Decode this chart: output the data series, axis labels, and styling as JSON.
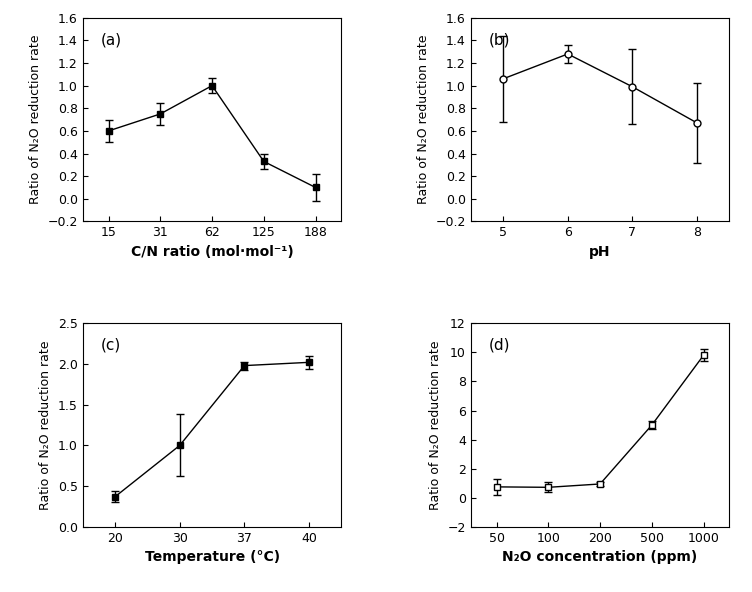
{
  "panel_a": {
    "x_positions": [
      0,
      1,
      2,
      3,
      4
    ],
    "x_labels": [
      "15",
      "31",
      "62",
      "125",
      "188"
    ],
    "y": [
      0.6,
      0.75,
      1.0,
      0.33,
      0.1
    ],
    "yerr": [
      0.1,
      0.1,
      0.065,
      0.07,
      0.12
    ],
    "xlabel": "C/N ratio (mol·mol⁻¹)",
    "ylabel": "Ratio of N₂O reduction rate",
    "label": "(a)",
    "ylim": [
      -0.2,
      1.6
    ],
    "yticks": [
      -0.2,
      0.0,
      0.2,
      0.4,
      0.6,
      0.8,
      1.0,
      1.2,
      1.4,
      1.6
    ],
    "marker": "s",
    "marker_fill": "black",
    "xlim": [
      -0.5,
      4.5
    ]
  },
  "panel_b": {
    "x_positions": [
      0,
      1,
      2,
      3
    ],
    "x_labels": [
      "5",
      "6",
      "7",
      "8"
    ],
    "y": [
      1.06,
      1.28,
      0.99,
      0.67
    ],
    "yerr": [
      0.38,
      0.08,
      0.33,
      0.35
    ],
    "xlabel": "pH",
    "ylabel": "Ratio of N₂O reduction rate",
    "label": "(b)",
    "ylim": [
      -0.2,
      1.6
    ],
    "yticks": [
      -0.2,
      0.0,
      0.2,
      0.4,
      0.6,
      0.8,
      1.0,
      1.2,
      1.4,
      1.6
    ],
    "marker": "o",
    "marker_fill": "white",
    "xlim": [
      -0.5,
      3.5
    ]
  },
  "panel_c": {
    "x_positions": [
      0,
      1,
      2,
      3
    ],
    "x_labels": [
      "20",
      "30",
      "37",
      "40"
    ],
    "y": [
      0.37,
      1.0,
      1.98,
      2.02
    ],
    "yerr": [
      0.07,
      0.38,
      0.05,
      0.08
    ],
    "xlabel": "Temperature (°C)",
    "ylabel": "Ratio of N₂O reduction rate",
    "label": "(c)",
    "ylim": [
      0.0,
      2.5
    ],
    "yticks": [
      0.0,
      0.5,
      1.0,
      1.5,
      2.0,
      2.5
    ],
    "marker": "s",
    "marker_fill": "black",
    "xlim": [
      -0.5,
      3.5
    ]
  },
  "panel_d": {
    "x_positions": [
      0,
      1,
      2,
      3,
      4
    ],
    "x_labels": [
      "50",
      "100",
      "200",
      "500",
      "1000"
    ],
    "y": [
      0.75,
      0.72,
      0.95,
      5.0,
      9.8
    ],
    "yerr": [
      0.55,
      0.35,
      0.15,
      0.3,
      0.4
    ],
    "xlabel": "N₂O concentration (ppm)",
    "ylabel": "Ratio of N₂O reduction rate",
    "label": "(d)",
    "ylim": [
      -2,
      12
    ],
    "yticks": [
      -2,
      0,
      2,
      4,
      6,
      8,
      10,
      12
    ],
    "marker": "s",
    "marker_fill": "white",
    "xlim": [
      -0.5,
      4.5
    ]
  },
  "line_color": "#000000",
  "line_style": "-",
  "line_width": 1.0,
  "capsize": 3,
  "elinewidth": 1.0,
  "markersize": 5,
  "label_fontsize": 10,
  "tick_fontsize": 9,
  "panel_label_fontsize": 11,
  "ylabel_fontsize": 9
}
